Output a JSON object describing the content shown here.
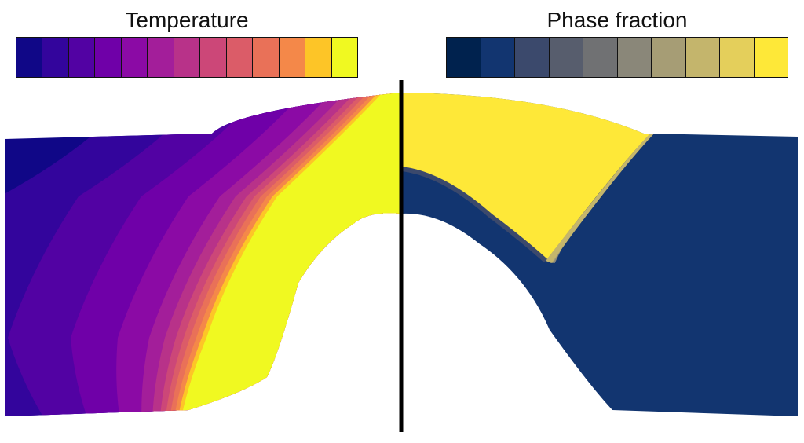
{
  "left_panel": {
    "title": "Temperature",
    "colormap": [
      "#100787",
      "#33059c",
      "#5202a3",
      "#6f00a8",
      "#8b0aa5",
      "#a31e9a",
      "#b83289",
      "#cc4778",
      "#db5c68",
      "#e97158",
      "#f48849",
      "#fdc527",
      "#f0f921"
    ]
  },
  "right_panel": {
    "title": "Phase fraction",
    "colormap": [
      "#00224e",
      "#123570",
      "#3b496c",
      "#575d6d",
      "#707173",
      "#8a8779",
      "#a69d75",
      "#c4b56c",
      "#e4cf5b",
      "#fee838"
    ]
  }
}
